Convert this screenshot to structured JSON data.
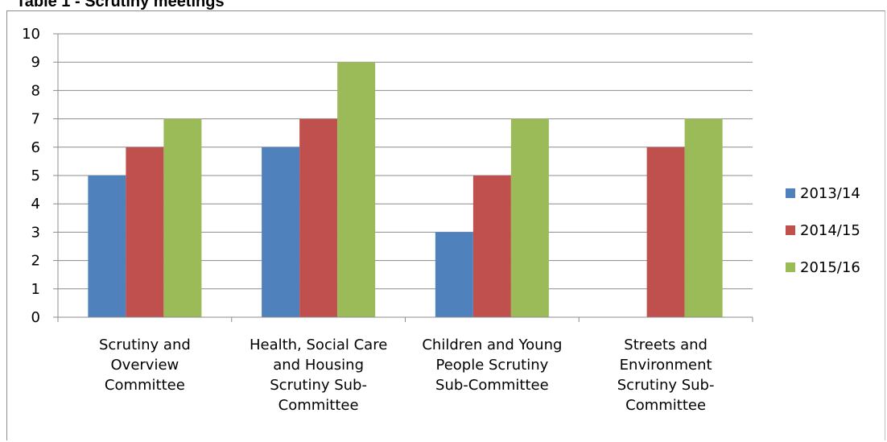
{
  "title": "Table 1 - Scrutiny meetings",
  "chart_data": {
    "type": "bar",
    "categories": [
      [
        "Scrutiny and",
        "Overview",
        "Committee"
      ],
      [
        "Health, Social Care",
        "and Housing",
        "Scrutiny Sub-",
        "Committee"
      ],
      [
        "Children and Young",
        "People Scrutiny",
        "Sub-Committee"
      ],
      [
        "Streets and",
        "Environment",
        "Scrutiny Sub-",
        "Committee"
      ]
    ],
    "series": [
      {
        "name": "2013/14",
        "color": "#4f81bd",
        "values": [
          5,
          6,
          3,
          0
        ]
      },
      {
        "name": "2014/15",
        "color": "#c0504d",
        "values": [
          6,
          7,
          5,
          6
        ]
      },
      {
        "name": "2015/16",
        "color": "#9bbb59",
        "values": [
          7,
          9,
          7,
          7
        ]
      }
    ],
    "ylim": [
      0,
      10
    ],
    "yticks": [
      "0",
      "1",
      "2",
      "3",
      "4",
      "5",
      "6",
      "7",
      "8",
      "9",
      "10"
    ],
    "grid": true,
    "legend": "right"
  }
}
